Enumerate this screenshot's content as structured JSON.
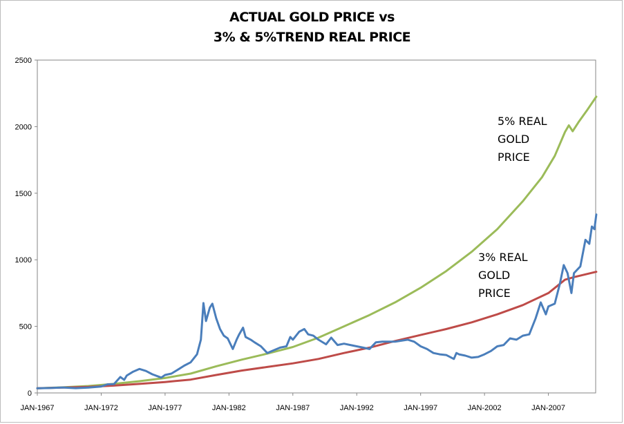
{
  "chart_data": {
    "type": "line",
    "title_line1": "ACTUAL GOLD PRICE vs",
    "title_line2": "3% & 5%TREND REAL PRICE",
    "xlabel": "",
    "ylabel": "",
    "ylim": [
      0,
      2500
    ],
    "y_ticks": [
      0,
      500,
      1000,
      1500,
      2000,
      2500
    ],
    "x_ticks": [
      "JAN-1967",
      "JAN-1972",
      "JAN-1977",
      "JAN-1982",
      "JAN-1987",
      "JAN-1992",
      "JAN-1997",
      "JAN-2002",
      "JAN-2007"
    ],
    "xlim": [
      1967.0,
      2010.7
    ],
    "grid": false,
    "legend": "none",
    "series": [
      {
        "key": "actual",
        "color": "#4a7ebb",
        "points": [
          [
            1967.0,
            35
          ],
          [
            1968.0,
            37
          ],
          [
            1969.0,
            41
          ],
          [
            1970.0,
            36
          ],
          [
            1971.0,
            40
          ],
          [
            1972.0,
            48
          ],
          [
            1972.5,
            65
          ],
          [
            1973.0,
            66
          ],
          [
            1973.5,
            120
          ],
          [
            1973.8,
            98
          ],
          [
            1974.0,
            130
          ],
          [
            1974.5,
            160
          ],
          [
            1975.0,
            180
          ],
          [
            1975.5,
            165
          ],
          [
            1976.0,
            140
          ],
          [
            1976.7,
            115
          ],
          [
            1977.0,
            135
          ],
          [
            1977.5,
            145
          ],
          [
            1978.0,
            175
          ],
          [
            1978.5,
            205
          ],
          [
            1979.0,
            230
          ],
          [
            1979.5,
            290
          ],
          [
            1979.8,
            400
          ],
          [
            1980.0,
            675
          ],
          [
            1980.2,
            540
          ],
          [
            1980.5,
            640
          ],
          [
            1980.7,
            670
          ],
          [
            1981.0,
            560
          ],
          [
            1981.3,
            480
          ],
          [
            1981.6,
            430
          ],
          [
            1981.9,
            410
          ],
          [
            1982.3,
            330
          ],
          [
            1982.6,
            400
          ],
          [
            1982.8,
            440
          ],
          [
            1983.1,
            490
          ],
          [
            1983.3,
            420
          ],
          [
            1983.7,
            400
          ],
          [
            1984.0,
            380
          ],
          [
            1984.5,
            350
          ],
          [
            1985.0,
            300
          ],
          [
            1985.5,
            320
          ],
          [
            1986.0,
            340
          ],
          [
            1986.5,
            350
          ],
          [
            1986.8,
            420
          ],
          [
            1987.0,
            400
          ],
          [
            1987.5,
            460
          ],
          [
            1987.9,
            480
          ],
          [
            1988.2,
            440
          ],
          [
            1988.6,
            430
          ],
          [
            1989.0,
            400
          ],
          [
            1989.6,
            365
          ],
          [
            1990.0,
            415
          ],
          [
            1990.5,
            360
          ],
          [
            1991.0,
            370
          ],
          [
            1991.5,
            360
          ],
          [
            1992.0,
            350
          ],
          [
            1992.5,
            340
          ],
          [
            1993.0,
            330
          ],
          [
            1993.5,
            380
          ],
          [
            1994.0,
            385
          ],
          [
            1995.0,
            385
          ],
          [
            1996.0,
            400
          ],
          [
            1996.5,
            385
          ],
          [
            1997.0,
            350
          ],
          [
            1997.5,
            330
          ],
          [
            1998.0,
            300
          ],
          [
            1998.5,
            290
          ],
          [
            1999.0,
            285
          ],
          [
            1999.6,
            255
          ],
          [
            1999.8,
            300
          ],
          [
            2000.0,
            290
          ],
          [
            2000.5,
            280
          ],
          [
            2001.0,
            265
          ],
          [
            2001.5,
            270
          ],
          [
            2002.0,
            290
          ],
          [
            2002.5,
            315
          ],
          [
            2003.0,
            350
          ],
          [
            2003.5,
            360
          ],
          [
            2004.0,
            410
          ],
          [
            2004.5,
            400
          ],
          [
            2005.0,
            430
          ],
          [
            2005.5,
            440
          ],
          [
            2006.0,
            560
          ],
          [
            2006.4,
            680
          ],
          [
            2006.8,
            590
          ],
          [
            2007.0,
            650
          ],
          [
            2007.5,
            670
          ],
          [
            2007.9,
            820
          ],
          [
            2008.2,
            960
          ],
          [
            2008.5,
            900
          ],
          [
            2008.8,
            750
          ],
          [
            2009.0,
            900
          ],
          [
            2009.5,
            950
          ],
          [
            2009.9,
            1150
          ],
          [
            2010.2,
            1120
          ],
          [
            2010.4,
            1250
          ],
          [
            2010.6,
            1230
          ],
          [
            2010.75,
            1340
          ]
        ]
      },
      {
        "key": "real3",
        "color": "#be4b48",
        "points": [
          [
            1967.0,
            35
          ],
          [
            1969.0,
            40
          ],
          [
            1971.0,
            45
          ],
          [
            1973.0,
            55
          ],
          [
            1975.0,
            68
          ],
          [
            1977.0,
            82
          ],
          [
            1979.0,
            100
          ],
          [
            1981.0,
            135
          ],
          [
            1983.0,
            168
          ],
          [
            1985.0,
            195
          ],
          [
            1987.0,
            222
          ],
          [
            1989.0,
            255
          ],
          [
            1991.0,
            300
          ],
          [
            1993.0,
            340
          ],
          [
            1995.0,
            390
          ],
          [
            1997.0,
            435
          ],
          [
            1999.0,
            480
          ],
          [
            2001.0,
            530
          ],
          [
            2003.0,
            590
          ],
          [
            2005.0,
            660
          ],
          [
            2007.0,
            750
          ],
          [
            2008.3,
            850
          ],
          [
            2009.0,
            870
          ],
          [
            2010.75,
            910
          ]
        ]
      },
      {
        "key": "real5",
        "color": "#9bbb59",
        "points": [
          [
            1967.0,
            35
          ],
          [
            1969.0,
            42
          ],
          [
            1971.0,
            52
          ],
          [
            1973.0,
            68
          ],
          [
            1975.0,
            88
          ],
          [
            1977.0,
            112
          ],
          [
            1979.0,
            145
          ],
          [
            1981.0,
            200
          ],
          [
            1983.0,
            250
          ],
          [
            1985.0,
            295
          ],
          [
            1987.0,
            345
          ],
          [
            1989.0,
            415
          ],
          [
            1991.0,
            500
          ],
          [
            1993.0,
            585
          ],
          [
            1995.0,
            680
          ],
          [
            1997.0,
            790
          ],
          [
            1999.0,
            915
          ],
          [
            2001.0,
            1060
          ],
          [
            2003.0,
            1230
          ],
          [
            2005.0,
            1440
          ],
          [
            2006.5,
            1620
          ],
          [
            2007.5,
            1780
          ],
          [
            2008.3,
            1960
          ],
          [
            2008.6,
            2010
          ],
          [
            2008.9,
            1965
          ],
          [
            2009.4,
            2040
          ],
          [
            2010.0,
            2120
          ],
          [
            2010.75,
            2225
          ]
        ]
      }
    ],
    "annotations": [
      {
        "for": "real5",
        "lines": [
          "5% REAL",
          "GOLD",
          "PRICE"
        ]
      },
      {
        "for": "real3",
        "lines": [
          "3% REAL",
          "GOLD",
          "PRICE"
        ]
      }
    ]
  }
}
